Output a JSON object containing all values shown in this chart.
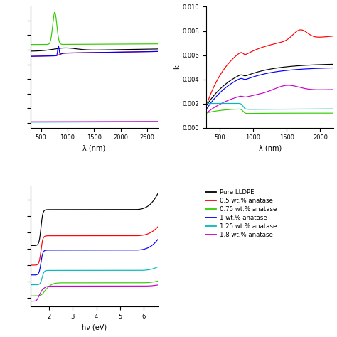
{
  "colors": {
    "black": "#000000",
    "red": "#ff0000",
    "green": "#33cc00",
    "blue": "#0000ff",
    "cyan": "#00bbbb",
    "magenta": "#cc00cc"
  },
  "legend_labels": [
    "Pure LLDPE",
    "0.5 wt.% anatase",
    "0.75 wt.% anatase",
    "1 wt.% anatase",
    "1.25 wt.% anatase",
    "1.8 wt.% anatase"
  ],
  "ax1": {
    "xlabel": "λ (nm)",
    "xlim": [
      300,
      2700
    ],
    "xticks": [
      500,
      1000,
      1500,
      2000,
      2500
    ]
  },
  "ax2": {
    "xlabel": "λ (nm)",
    "ylabel": "k",
    "xlim": [
      300,
      2200
    ],
    "ylim": [
      0.0,
      0.01
    ],
    "yticks": [
      0.0,
      0.002,
      0.004,
      0.006,
      0.008,
      0.01
    ],
    "xticks": [
      500,
      1000,
      1500,
      2000
    ]
  },
  "ax3": {
    "xlabel": "hν (eV)",
    "xlim": [
      1.2,
      6.6
    ],
    "xticks": [
      2,
      3,
      4,
      5,
      6
    ]
  }
}
